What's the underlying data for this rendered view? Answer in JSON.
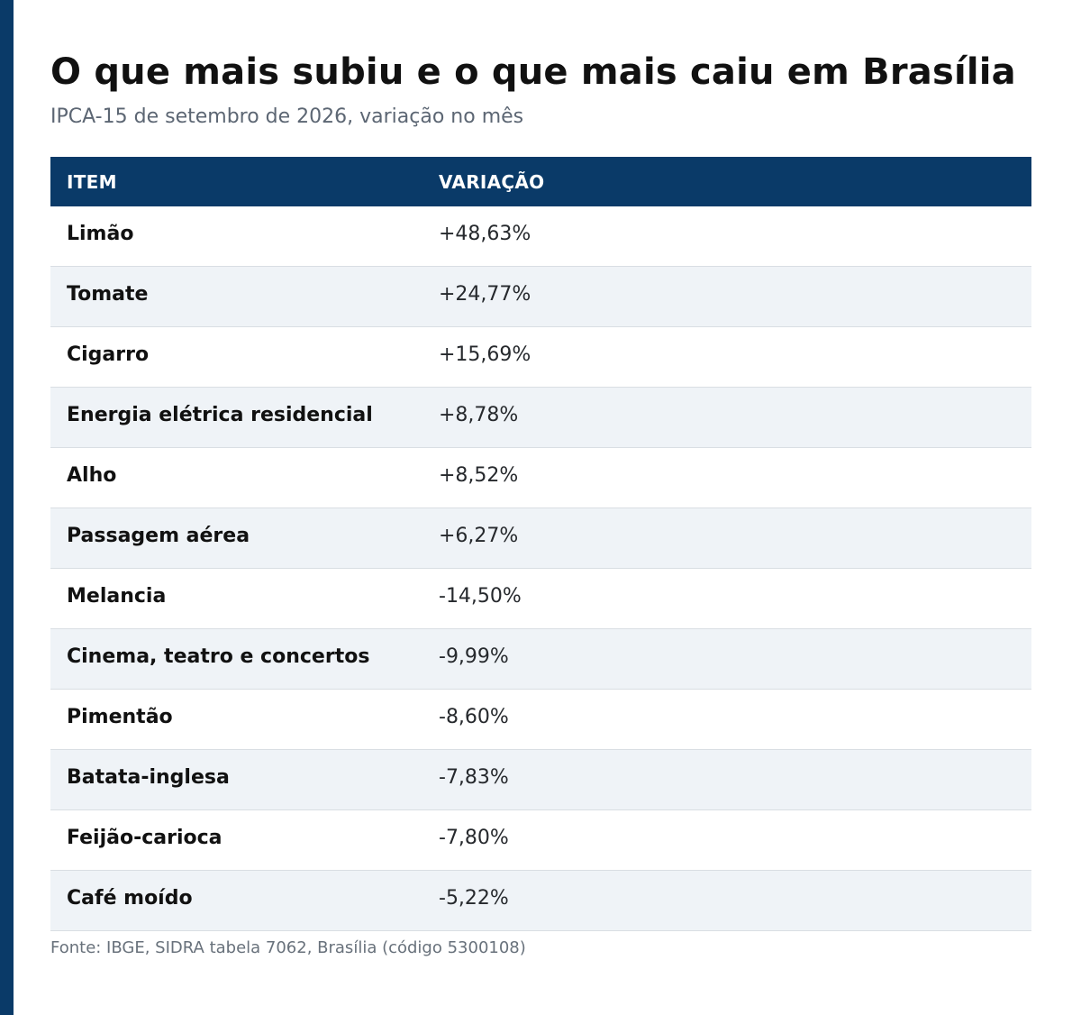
{
  "title": "O que mais subiu e o que mais caiu em Brasília",
  "subtitle": "IPCA-15 de setembro de 2026, variação no mês",
  "table": {
    "headers": {
      "item": "ITEM",
      "variation": "VARIAÇÃO"
    },
    "rows": [
      {
        "item": "Limão",
        "variation": "+48,63%"
      },
      {
        "item": "Tomate",
        "variation": "+24,77%"
      },
      {
        "item": "Cigarro",
        "variation": "+15,69%"
      },
      {
        "item": "Energia elétrica residencial",
        "variation": "+8,78%"
      },
      {
        "item": "Alho",
        "variation": "+8,52%"
      },
      {
        "item": "Passagem aérea",
        "variation": "+6,27%"
      },
      {
        "item": "Melancia",
        "variation": "-14,50%"
      },
      {
        "item": "Cinema, teatro e concertos",
        "variation": "-9,99%"
      },
      {
        "item": "Pimentão",
        "variation": "-8,60%"
      },
      {
        "item": "Batata-inglesa",
        "variation": "-7,83%"
      },
      {
        "item": "Feijão-carioca",
        "variation": "-7,80%"
      },
      {
        "item": "Café moído",
        "variation": "-5,22%"
      }
    ]
  },
  "source": "Fonte: IBGE, SIDRA tabela 7062, Brasília (código 5300108)",
  "colors": {
    "accent": "#0a3a68",
    "row_alt": "#eff3f7",
    "title_text": "#111111",
    "subtitle_text": "#5c6673"
  }
}
